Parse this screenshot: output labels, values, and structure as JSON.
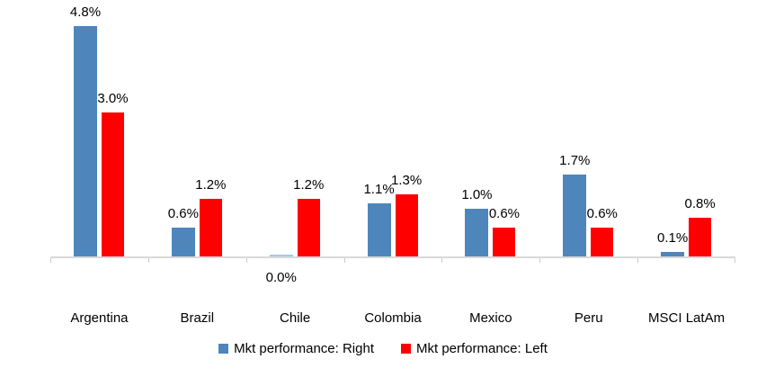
{
  "chart_data": {
    "type": "bar",
    "title": "",
    "xlabel": "",
    "ylabel": "",
    "categories": [
      "Argentina",
      "Brazil",
      "Chile",
      "Colombia",
      "Mexico",
      "Peru",
      "MSCI LatAm"
    ],
    "series": [
      {
        "name": "Mkt performance: Right",
        "color": "#4E86BC",
        "values": [
          4.8,
          0.6,
          0.0,
          1.1,
          1.0,
          1.7,
          0.1
        ],
        "labels": [
          "4.8%",
          "0.6%",
          "0.0%",
          "1.1%",
          "1.0%",
          "1.7%",
          "0.1%"
        ]
      },
      {
        "name": "Mkt performance: Left",
        "color": "#FF0000",
        "values": [
          3.0,
          1.2,
          1.2,
          1.3,
          0.6,
          0.6,
          0.8
        ],
        "labels": [
          "3.0%",
          "1.2%",
          "1.2%",
          "1.3%",
          "0.6%",
          "0.6%",
          "0.8%"
        ]
      }
    ],
    "ylim": [
      0,
      5.35
    ],
    "grid": false,
    "legend_position": "bottom",
    "axis_color": "#D9D9D9",
    "tiny_bar_color": "#A9C7E5",
    "label_color": "#000000"
  }
}
